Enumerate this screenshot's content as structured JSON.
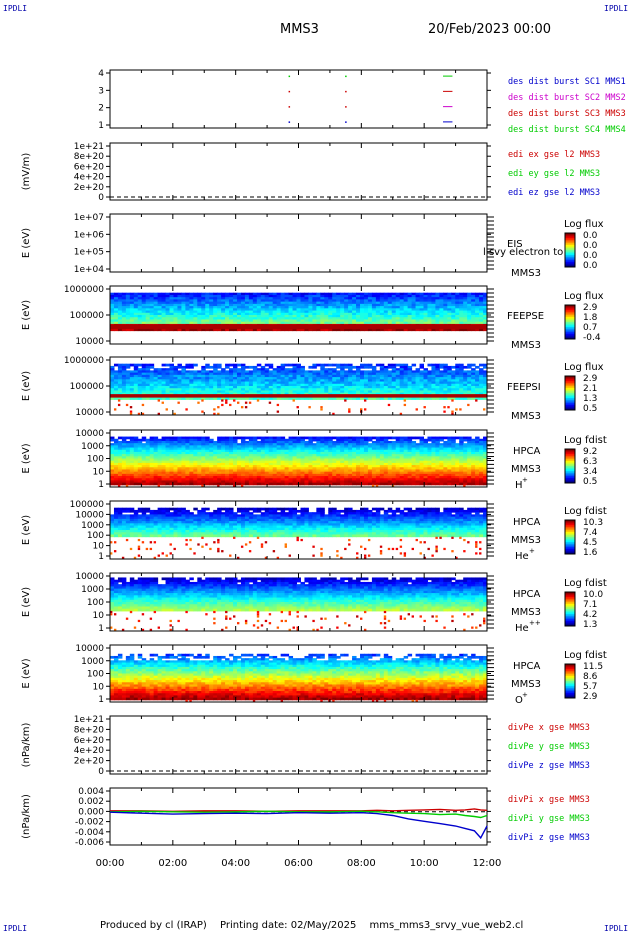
{
  "header": {
    "corner_label": "IPDLI",
    "spacecraft": "MMS3",
    "datetime": "20/Feb/2023 00:00"
  },
  "footer": {
    "produced": "Produced by cl (IRAP)",
    "printing": "Printing date: 02/May/2025",
    "file": "mms_mms3_srvy_vue_web2.cl"
  },
  "colors": {
    "red": "#cc0000",
    "green": "#00cc00",
    "blue": "#0000cc",
    "magenta": "#cc00cc"
  },
  "chart_data": [
    {
      "type": "scatter",
      "panel": "burst",
      "ylabel": "",
      "yticks": [
        "1",
        "2",
        "3",
        "4"
      ],
      "ylim": [
        0.6,
        4.4
      ],
      "legend": [
        {
          "text": "des dist burst SC1 MMS1",
          "color": "#0000cc"
        },
        {
          "text": "des dist burst SC2 MMS2",
          "color": "#cc00cc"
        },
        {
          "text": "des dist burst SC3 MMS3",
          "color": "#cc0000"
        },
        {
          "text": "des dist burst SC4 MMS4",
          "color": "#00cc00"
        }
      ],
      "markers": [
        {
          "t": 5.7,
          "y": 4,
          "color": "#00cc00"
        },
        {
          "t": 5.7,
          "y": 3,
          "color": "#cc0000"
        },
        {
          "t": 5.7,
          "y": 2,
          "color": "#cc0000"
        },
        {
          "t": 5.7,
          "y": 1,
          "color": "#0000cc"
        },
        {
          "t": 7.5,
          "y": 4,
          "color": "#00cc00"
        },
        {
          "t": 7.5,
          "y": 3,
          "color": "#cc0000"
        },
        {
          "t": 7.5,
          "y": 2,
          "color": "#cc0000"
        },
        {
          "t": 7.5,
          "y": 1,
          "color": "#0000cc"
        }
      ],
      "segments": [
        {
          "t0": 10.6,
          "t1": 10.9,
          "y": 4,
          "color": "#00cc00"
        },
        {
          "t0": 10.6,
          "t1": 10.9,
          "y": 3,
          "color": "#cc0000"
        },
        {
          "t0": 10.6,
          "t1": 10.9,
          "y": 2,
          "color": "#cc00cc"
        },
        {
          "t0": 10.6,
          "t1": 10.9,
          "y": 1,
          "color": "#0000cc"
        }
      ]
    },
    {
      "type": "line",
      "panel": "edi",
      "ylabel": "(mV/m)",
      "yticks": [
        "0",
        "2e+20",
        "4e+20",
        "6e+20",
        "8e+20",
        "1e+21"
      ],
      "legend": [
        {
          "text": "edi ex gse l2 MMS3",
          "color": "#cc0000"
        },
        {
          "text": "edi ey gse l2 MMS3",
          "color": "#00cc00"
        },
        {
          "text": "edi ez gse l2 MMS3",
          "color": "#0000cc"
        }
      ],
      "series": []
    },
    {
      "type": "heatmap",
      "panel": "eis",
      "ylabel": "E (eV)",
      "yticks": [
        "1e+04",
        "1e+05",
        "1e+06",
        "1e+07"
      ],
      "instrument": "EIS",
      "spacecraft": "MMS3",
      "overlay": "l svy electron to",
      "cbar_title": "Log flux",
      "cbar_ticks": [
        "0.0",
        "0.0",
        "0.0",
        "0.0"
      ]
    },
    {
      "type": "heatmap",
      "panel": "feepse",
      "ylabel": "E (eV)",
      "yticks": [
        "10000",
        "100000",
        "1000000"
      ],
      "instrument": "FEEPSE",
      "spacecraft": "MMS3",
      "cbar_title": "Log flux",
      "cbar_ticks": [
        "2.9",
        "1.8",
        "0.7",
        "-0.4"
      ]
    },
    {
      "type": "heatmap",
      "panel": "feepsi",
      "ylabel": "E (eV)",
      "yticks": [
        "10000",
        "100000",
        "1000000"
      ],
      "instrument": "FEEPSI",
      "spacecraft": "MMS3",
      "cbar_title": "Log flux",
      "cbar_ticks": [
        "2.9",
        "2.1",
        "1.3",
        "0.5"
      ]
    },
    {
      "type": "heatmap",
      "panel": "hpca-h",
      "ylabel": "E (eV)",
      "yticks": [
        "1",
        "10",
        "100",
        "1000",
        "10000"
      ],
      "instrument": "HPCA",
      "spacecraft": "MMS3",
      "species": "H",
      "charge": "+",
      "cbar_title": "Log fdist",
      "cbar_ticks": [
        "9.2",
        "6.3",
        "3.4",
        "0.5"
      ]
    },
    {
      "type": "heatmap",
      "panel": "hpca-he",
      "ylabel": "E (eV)",
      "yticks": [
        "1",
        "10",
        "100",
        "1000",
        "10000",
        "100000"
      ],
      "instrument": "HPCA",
      "spacecraft": "MMS3",
      "species": "He",
      "charge": "+",
      "cbar_title": "Log fdist",
      "cbar_ticks": [
        "10.3",
        "7.4",
        "4.5",
        "1.6"
      ]
    },
    {
      "type": "heatmap",
      "panel": "hpca-he2",
      "ylabel": "E (eV)",
      "yticks": [
        "1",
        "10",
        "100",
        "1000",
        "10000"
      ],
      "instrument": "HPCA",
      "spacecraft": "MMS3",
      "species": "He",
      "charge": "++",
      "cbar_title": "Log fdist",
      "cbar_ticks": [
        "10.0",
        "7.1",
        "4.2",
        "1.3"
      ]
    },
    {
      "type": "heatmap",
      "panel": "hpca-o",
      "ylabel": "E (eV)",
      "yticks": [
        "1",
        "10",
        "100",
        "1000",
        "10000"
      ],
      "instrument": "HPCA",
      "spacecraft": "MMS3",
      "species": "O",
      "charge": "+",
      "cbar_title": "Log fdist",
      "cbar_ticks": [
        "11.5",
        "8.6",
        "5.7",
        "2.9"
      ]
    },
    {
      "type": "line",
      "panel": "divpe",
      "ylabel": "(nPa/km)",
      "yticks": [
        "0",
        "2e+20",
        "4e+20",
        "6e+20",
        "8e+20",
        "1e+21"
      ],
      "legend": [
        {
          "text": "divPe x gse MMS3",
          "color": "#cc0000"
        },
        {
          "text": "divPe y gse MMS3",
          "color": "#00cc00"
        },
        {
          "text": "divPe z gse MMS3",
          "color": "#0000cc"
        }
      ],
      "series": []
    },
    {
      "type": "line",
      "panel": "divpi",
      "ylabel": "(nPa/km)",
      "yticks": [
        "-0.006",
        "-0.004",
        "-0.002",
        "0.000",
        "0.002",
        "0.004"
      ],
      "ylim": [
        -0.007,
        0.005
      ],
      "legend": [
        {
          "text": "divPi x gse MMS3",
          "color": "#cc0000"
        },
        {
          "text": "divPi y gse MMS3",
          "color": "#00cc00"
        },
        {
          "text": "divPi z gse MMS3",
          "color": "#0000cc"
        }
      ],
      "x": [
        0,
        1,
        2,
        3,
        4,
        5,
        6,
        7,
        8,
        8.5,
        9,
        9.5,
        10,
        10.5,
        11,
        11.3,
        11.6,
        11.8,
        12
      ],
      "series": [
        {
          "name": "divPi x gse MMS3",
          "color": "#cc0000",
          "values": [
            0.0002,
            0.0002,
            0.0001,
            0.0002,
            0.0002,
            0.0001,
            0.0002,
            0.0002,
            0.0002,
            0.0003,
            0.0002,
            0.0003,
            0.0004,
            0.0005,
            0.0003,
            0.0004,
            0.0006,
            0.0004,
            0.0003
          ]
        },
        {
          "name": "divPi y gse MMS3",
          "color": "#00cc00",
          "values": [
            0.0,
            0.0001,
            0.0,
            -0.0001,
            0.0,
            0.0001,
            0.0,
            0.0,
            0.0001,
            0.0,
            -0.0002,
            -0.0003,
            -0.0004,
            -0.0006,
            -0.0005,
            -0.0008,
            -0.001,
            -0.0012,
            -0.0008
          ]
        },
        {
          "name": "divPi z gse MMS3",
          "color": "#0000cc",
          "values": [
            -0.0001,
            -0.0003,
            -0.0005,
            -0.0004,
            -0.0003,
            -0.0004,
            -0.0002,
            -0.0003,
            -0.0002,
            -0.0004,
            -0.0008,
            -0.0015,
            -0.002,
            -0.0025,
            -0.003,
            -0.0035,
            -0.004,
            -0.0055,
            -0.003
          ]
        }
      ]
    }
  ],
  "xaxis": {
    "ticks": [
      "00:00",
      "02:00",
      "04:00",
      "06:00",
      "08:00",
      "10:00",
      "12:00"
    ],
    "range_hours": [
      0,
      12
    ]
  }
}
